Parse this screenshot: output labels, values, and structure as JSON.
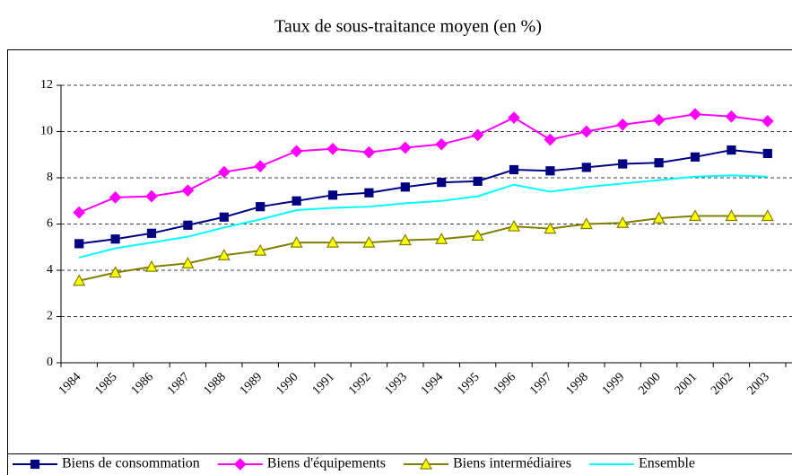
{
  "chart_data": {
    "type": "line",
    "title": "Taux de sous-traitance moyen (en %)",
    "categories": [
      "1984",
      "1985",
      "1986",
      "1987",
      "1988",
      "1989",
      "1990",
      "1991",
      "1992",
      "1993",
      "1994",
      "1995",
      "1996",
      "1997",
      "1998",
      "1999",
      "2000",
      "2001",
      "2002",
      "2003"
    ],
    "series": [
      {
        "name": "Biens de consommation",
        "color": "#000080",
        "marker": "square",
        "marker_fill": "#000080",
        "values": [
          5.15,
          5.35,
          5.6,
          5.95,
          6.3,
          6.75,
          7.0,
          7.25,
          7.35,
          7.6,
          7.8,
          7.85,
          8.35,
          8.3,
          8.45,
          8.6,
          8.65,
          8.9,
          9.2,
          9.05
        ]
      },
      {
        "name": "Biens d'équipements",
        "color": "#ff00ff",
        "marker": "diamond",
        "marker_fill": "#ff00ff",
        "values": [
          6.5,
          7.15,
          7.2,
          7.45,
          8.25,
          8.5,
          9.15,
          9.25,
          9.1,
          9.3,
          9.45,
          9.85,
          10.6,
          9.65,
          10.0,
          10.3,
          10.5,
          10.75,
          10.65,
          10.45
        ]
      },
      {
        "name": "Biens intermédiaires",
        "color": "#808000",
        "marker": "triangle",
        "marker_fill": "#ffff00",
        "values": [
          3.55,
          3.9,
          4.15,
          4.3,
          4.65,
          4.85,
          5.2,
          5.2,
          5.2,
          5.3,
          5.35,
          5.5,
          5.9,
          5.8,
          6.0,
          6.05,
          6.25,
          6.35,
          6.35,
          6.35
        ]
      },
      {
        "name": "Ensemble",
        "color": "#00ffff",
        "marker": "none",
        "marker_fill": "#00ffff",
        "values": [
          4.55,
          4.95,
          5.2,
          5.45,
          5.85,
          6.2,
          6.6,
          6.7,
          6.75,
          6.9,
          7.0,
          7.2,
          7.7,
          7.4,
          7.6,
          7.75,
          7.9,
          8.05,
          8.1,
          8.05
        ]
      }
    ],
    "ylim": [
      0,
      12
    ],
    "yticks": [
      0,
      2,
      4,
      6,
      8,
      10,
      12
    ],
    "grid": true,
    "legend": "bottom"
  }
}
